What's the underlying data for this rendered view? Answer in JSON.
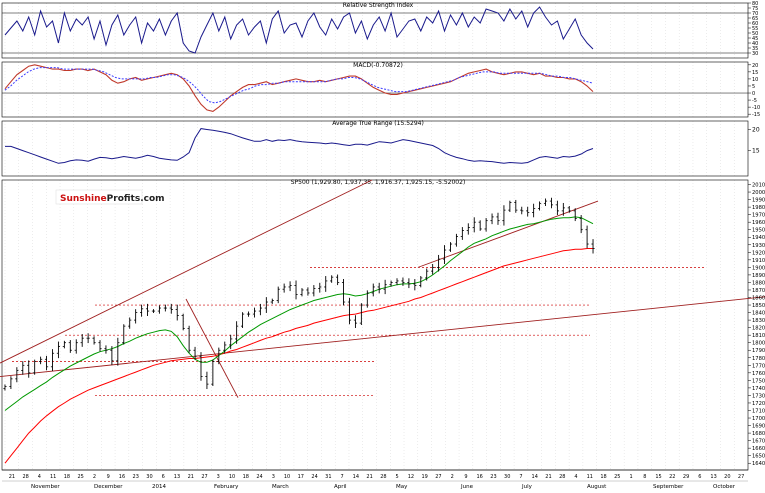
{
  "watermark": {
    "brand": "Sunshine",
    "rest": "Profits.com"
  },
  "colors": {
    "price": "#000000",
    "ma_short": "#009900",
    "ma_long": "#ff0000",
    "channel": "#a02020",
    "level": "#cc0000",
    "rsi": "#1a1a8c",
    "macd": "#c0392b",
    "signal": "#3b3bff",
    "atr": "#1a1a8c",
    "grid": "#cfcfcf"
  },
  "chart_data": [
    {
      "type": "line",
      "title": "Relative Strength Index",
      "ylim": [
        25,
        80
      ],
      "yticks": [
        80,
        75,
        70,
        65,
        60,
        55,
        50,
        45,
        40,
        35,
        30
      ],
      "hlines": [
        30,
        70
      ],
      "series": [
        {
          "values": [
            48,
            55,
            62,
            52,
            66,
            48,
            72,
            56,
            62,
            40,
            70,
            52,
            64,
            58,
            66,
            44,
            62,
            38,
            58,
            68,
            48,
            58,
            66,
            40,
            60,
            52,
            64,
            48,
            62,
            70,
            40,
            32,
            30,
            46,
            58,
            70,
            52,
            66,
            44,
            58,
            64,
            48,
            56,
            62,
            40,
            64,
            72,
            50,
            58,
            60,
            46,
            62,
            70,
            56,
            48,
            64,
            54,
            66,
            70,
            50,
            62,
            44,
            58,
            66,
            52,
            70,
            46,
            54,
            62,
            64,
            52,
            66,
            60,
            72,
            52,
            68,
            58,
            70,
            56,
            66,
            60,
            74,
            72,
            70,
            62,
            74,
            64,
            72,
            56,
            70,
            76,
            66,
            58,
            62,
            44,
            54,
            64,
            48,
            40,
            34
          ]
        }
      ]
    },
    {
      "type": "line",
      "title": "MACD(-0.70872)",
      "ylim": [
        -17,
        22
      ],
      "yticks": [
        20,
        15,
        10,
        5,
        0,
        -5,
        -10,
        -15
      ],
      "hlines": [
        0
      ],
      "series": [
        {
          "values": [
            3,
            8,
            13,
            16,
            19,
            20,
            19,
            18,
            17,
            17,
            16,
            16,
            17,
            17,
            16,
            17,
            15,
            13,
            9,
            7,
            8,
            10,
            11,
            9,
            10,
            11,
            12,
            13,
            14,
            13,
            10,
            5,
            -2,
            -8,
            -12,
            -13,
            -10,
            -6,
            -2,
            1,
            4,
            6,
            6,
            7,
            8,
            6,
            7,
            8,
            9,
            10,
            9,
            8,
            8,
            9,
            8,
            9,
            10,
            11,
            12,
            12,
            10,
            7,
            4,
            2,
            0,
            -1,
            -1,
            0,
            1,
            2,
            3,
            4,
            5,
            6,
            7,
            8,
            10,
            12,
            14,
            15,
            16,
            17,
            15,
            14,
            13,
            14,
            15,
            15,
            14,
            13,
            14,
            12,
            12,
            11,
            11,
            10,
            10,
            8,
            5,
            1
          ]
        },
        {
          "values": [
            2,
            5,
            9,
            12,
            15,
            17,
            18,
            18,
            18,
            18,
            17,
            17,
            17,
            17,
            17,
            17,
            16,
            15,
            13,
            11,
            10,
            10,
            10,
            10,
            10,
            11,
            11,
            12,
            13,
            13,
            12,
            10,
            7,
            3,
            -2,
            -6,
            -7,
            -6,
            -4,
            -2,
            0,
            2,
            3,
            5,
            6,
            6,
            7,
            7,
            8,
            8,
            8,
            8,
            8,
            8,
            8,
            8,
            9,
            10,
            10,
            11,
            11,
            10,
            8,
            6,
            4,
            3,
            2,
            1,
            1,
            1,
            2,
            3,
            4,
            5,
            6,
            7,
            8,
            9,
            11,
            12,
            13,
            14,
            15,
            15,
            15,
            14,
            14,
            14,
            14,
            14,
            14,
            14,
            14,
            13,
            12,
            12,
            11,
            11,
            10,
            9,
            8,
            7
          ]
        }
      ]
    },
    {
      "type": "line",
      "title": "Average True Range (15.5294)",
      "ylim": [
        9,
        22
      ],
      "yticks": [
        20,
        15
      ],
      "series": [
        {
          "values": [
            16,
            16,
            15.5,
            15,
            14.5,
            14,
            13.5,
            13,
            12.5,
            12,
            12.2,
            12.6,
            12.8,
            12.7,
            12.5,
            13,
            13.4,
            13.3,
            13.1,
            13.3,
            13.6,
            13.4,
            13.2,
            13.5,
            13.9,
            13.6,
            13.2,
            13,
            12.8,
            12.7,
            13.5,
            14.5,
            18,
            20.2,
            20,
            19.8,
            19.6,
            19.3,
            19,
            18.5,
            18,
            17.6,
            17.2,
            17.2,
            17.6,
            17.2,
            17.5,
            17.4,
            17.6,
            17.3,
            17.1,
            17,
            16.9,
            16.8,
            16.6,
            16.8,
            16.6,
            16.4,
            16.2,
            16.5,
            16.5,
            16.3,
            16.7,
            17.1,
            17,
            16.8,
            17.2,
            17.6,
            17.4,
            17.1,
            16.8,
            16.5,
            16.2,
            15.5,
            14.5,
            13.9,
            13.4,
            13.1,
            12.7,
            12.5,
            12.6,
            12.5,
            12.4,
            12.2,
            12,
            12.2,
            12.1,
            12,
            12.2,
            12.8,
            13.4,
            13.6,
            13.4,
            13.2,
            13.6,
            13.5,
            13.7,
            14.2,
            15,
            15.5
          ]
        }
      ]
    },
    {
      "type": "line",
      "title": "SP500 (1,929.80, 1,937.35, 1,916.37, 1,925.15, -5.52002)",
      "ylim": [
        1631,
        2016
      ],
      "yticks": [
        2010,
        2000,
        1990,
        1980,
        1970,
        1960,
        1950,
        1940,
        1930,
        1920,
        1910,
        1900,
        1890,
        1880,
        1870,
        1860,
        1850,
        1840,
        1830,
        1820,
        1810,
        1800,
        1790,
        1780,
        1770,
        1760,
        1750,
        1740,
        1730,
        1720,
        1710,
        1700,
        1690,
        1680,
        1670,
        1660,
        1650,
        1640
      ],
      "price_close": [
        1742,
        1752,
        1763,
        1770,
        1760,
        1775,
        1778,
        1768,
        1786,
        1795,
        1800,
        1790,
        1800,
        1806,
        1806,
        1800,
        1792,
        1790,
        1776,
        1800,
        1822,
        1830,
        1840,
        1845,
        1842,
        1842,
        1846,
        1846,
        1844,
        1836,
        1819,
        1790,
        1782,
        1755,
        1745,
        1775,
        1790,
        1797,
        1805,
        1822,
        1838,
        1838,
        1842,
        1846,
        1854,
        1856,
        1871,
        1874,
        1876,
        1864,
        1870,
        1866,
        1872,
        1874,
        1882,
        1887,
        1880,
        1854,
        1830,
        1826,
        1850,
        1866,
        1874,
        1871,
        1877,
        1880,
        1882,
        1880,
        1878,
        1876,
        1886,
        1895,
        1900,
        1911,
        1923,
        1931,
        1941,
        1949,
        1953,
        1960,
        1951,
        1962,
        1967,
        1962,
        1976,
        1986,
        1976,
        1975,
        1973,
        1978,
        1985,
        1988,
        1983,
        1975,
        1979,
        1975,
        1965,
        1950,
        1931,
        1925
      ],
      "ma_short": [
        1710,
        1716,
        1722,
        1728,
        1733,
        1738,
        1743,
        1748,
        1754,
        1759,
        1764,
        1769,
        1773,
        1777,
        1781,
        1785,
        1788,
        1790,
        1792,
        1795,
        1799,
        1802,
        1806,
        1809,
        1812,
        1814,
        1816,
        1817,
        1815,
        1808,
        1796,
        1786,
        1778,
        1774,
        1774,
        1777,
        1783,
        1789,
        1796,
        1802,
        1808,
        1814,
        1819,
        1824,
        1828,
        1832,
        1836,
        1840,
        1844,
        1847,
        1850,
        1853,
        1856,
        1858,
        1860,
        1862,
        1864,
        1865,
        1864,
        1862,
        1863,
        1865,
        1868,
        1871,
        1873,
        1875,
        1877,
        1878,
        1878,
        1879,
        1881,
        1885,
        1890,
        1896,
        1902,
        1909,
        1915,
        1921,
        1927,
        1932,
        1935,
        1938,
        1942,
        1945,
        1948,
        1951,
        1953,
        1955,
        1957,
        1958,
        1960,
        1962,
        1964,
        1965,
        1966,
        1966,
        1967,
        1966,
        1962,
        1958
      ],
      "ma_long": [
        1640,
        1650,
        1660,
        1670,
        1680,
        1688,
        1696,
        1703,
        1709,
        1715,
        1720,
        1725,
        1729,
        1733,
        1737,
        1740,
        1743,
        1746,
        1749,
        1752,
        1755,
        1758,
        1761,
        1764,
        1767,
        1770,
        1772,
        1774,
        1776,
        1777,
        1778,
        1779,
        1779,
        1780,
        1781,
        1782,
        1784,
        1786,
        1789,
        1791,
        1794,
        1797,
        1800,
        1803,
        1806,
        1808,
        1811,
        1814,
        1816,
        1819,
        1821,
        1823,
        1826,
        1828,
        1830,
        1832,
        1834,
        1836,
        1837,
        1838,
        1840,
        1842,
        1843,
        1845,
        1847,
        1849,
        1851,
        1853,
        1855,
        1858,
        1860,
        1863,
        1866,
        1869,
        1872,
        1875,
        1878,
        1881,
        1884,
        1887,
        1890,
        1893,
        1896,
        1899,
        1902,
        1904,
        1906,
        1908,
        1910,
        1912,
        1914,
        1916,
        1918,
        1920,
        1922,
        1923,
        1924,
        1924,
        1925,
        1925
      ],
      "levels": [
        1900,
        1850,
        1810,
        1775,
        1730
      ],
      "x_months": [
        "November",
        "December",
        "2014",
        "February",
        "March",
        "April",
        "May",
        "June",
        "July",
        "August",
        "September",
        "October"
      ],
      "x_days": [
        "21",
        "28",
        "4",
        "11",
        "18",
        "25",
        "2",
        "9",
        "16",
        "23",
        "30",
        "6",
        "13",
        "21",
        "27",
        "3",
        "10",
        "18",
        "24",
        "3",
        "10",
        "17",
        "24",
        "31",
        "7",
        "14",
        "21",
        "28",
        "5",
        "12",
        "19",
        "27",
        "2",
        "9",
        "16",
        "23",
        "30",
        "7",
        "14",
        "21",
        "28",
        "4",
        "11",
        "18",
        "25",
        "1",
        "8",
        "15",
        "22",
        "29",
        "6",
        "13",
        "20",
        "27"
      ]
    }
  ]
}
